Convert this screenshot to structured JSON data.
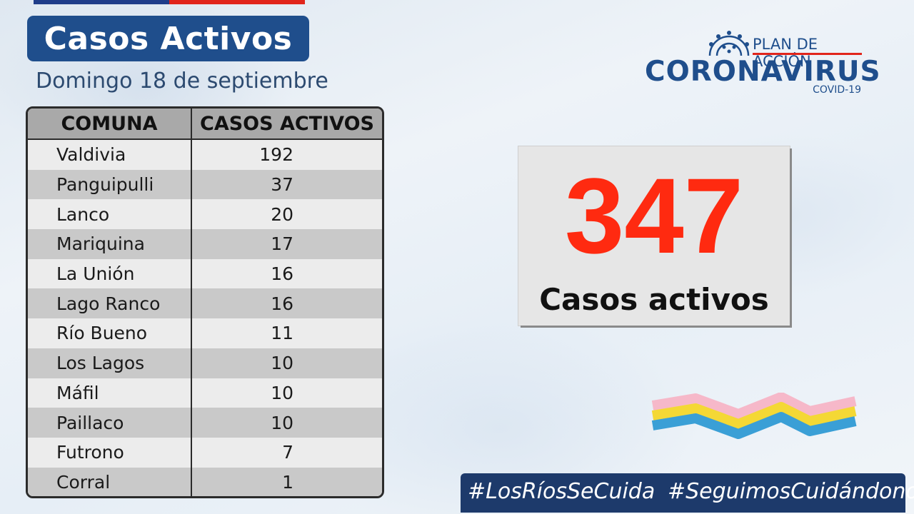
{
  "header": {
    "title": "Casos Activos",
    "date": "Domingo 18 de septiembre"
  },
  "table": {
    "columns": [
      "COMUNA",
      "CASOS ACTIVOS"
    ],
    "rows": [
      {
        "comuna": "Valdivia",
        "casos": "192"
      },
      {
        "comuna": "Panguipulli",
        "casos": "37"
      },
      {
        "comuna": "Lanco",
        "casos": "20"
      },
      {
        "comuna": "Mariquina",
        "casos": "17"
      },
      {
        "comuna": "La Unión",
        "casos": "16"
      },
      {
        "comuna": "Lago Ranco",
        "casos": "16"
      },
      {
        "comuna": "Río Bueno",
        "casos": "11"
      },
      {
        "comuna": "Los Lagos",
        "casos": "10"
      },
      {
        "comuna": "Máfil",
        "casos": "10"
      },
      {
        "comuna": "Paillaco",
        "casos": "10"
      },
      {
        "comuna": "Futrono",
        "casos": "7"
      },
      {
        "comuna": "Corral",
        "casos": "1"
      }
    ]
  },
  "total": {
    "value": "347",
    "label": "Casos activos"
  },
  "logo": {
    "plan": "PLAN DE ACCIÓN",
    "main": "CORONAVIRUS",
    "sub": "COVID-19"
  },
  "hashtags": [
    "#LosRíosSeCuida",
    "#SeguimosCuidándonos"
  ],
  "colors": {
    "brand_blue": "#1f4e8c",
    "accent_red": "#ff2a10",
    "hashtag_bar": "#1d3a6b"
  }
}
